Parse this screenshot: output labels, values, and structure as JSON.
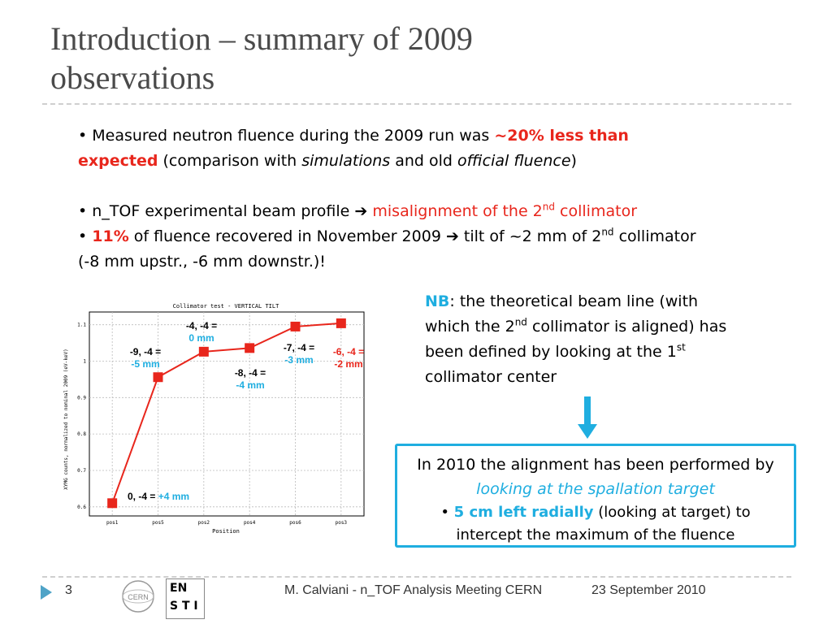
{
  "slide": {
    "title_line1": "Introduction – summary of 2009",
    "title_line2": "observations",
    "b1_pre": "Measured neutron fluence during the 2009 run was ",
    "b1_red1": "~20% less than",
    "b1_red2": "expected",
    "b1_mid": " (comparison with ",
    "b1_sim": "simulations",
    "b1_and": " and old ",
    "b1_off": "official fluence",
    "b1_end": ")",
    "b2_pre": "n_TOF experimental beam profile ",
    "b2_red_pre": "misalignment of the 2",
    "b2_red_sup": "nd",
    "b2_red_post": " collimator",
    "b3_pct": "11%",
    "b3_text": " of fluence recovered in November 2009 ",
    "b3_tail": " tilt of ~2 mm of 2",
    "b3_sup": "nd",
    "b3_end": " collimator",
    "b3_line2": "(-8 mm upstr., -6 mm downstr.)!",
    "nb_label": "NB",
    "nb_1": ": the theoretical beam line (with",
    "nb_2": "which the 2",
    "nb_2sup": "nd",
    "nb_2b": " collimator is aligned) has",
    "nb_3": "been defined by looking at the 1",
    "nb_3sup": "st",
    "nb_4": "collimator center",
    "box_l1": "In 2010 the alignment has been performed by",
    "box_l2": "looking at the spallation target",
    "box_l3a": "5 cm left radially",
    "box_l3b": " (looking at target) to",
    "box_l4": "intercept the maximum of the fluence"
  },
  "footer": {
    "page": "3",
    "text": "M. Calviani - n_TOF Analysis Meeting CERN",
    "date": "23 September 2010",
    "logo1": "CERN",
    "logo2_a": "EN",
    "logo2_b": "S T I"
  },
  "chart_data": {
    "type": "line",
    "title": "Collimator test - VERTICAL TILT",
    "xlabel": "Position",
    "ylabel": "XYMG counts, normalized to nominal 2009 (eV-keV)",
    "categories": [
      "pos1",
      "pos5",
      "pos2",
      "pos4",
      "pos6",
      "pos3"
    ],
    "values": [
      0.61,
      0.956,
      1.026,
      1.036,
      1.095,
      1.104
    ],
    "ylim": [
      0.575,
      1.135
    ],
    "yticks": [
      "0.6",
      "0.7",
      "0.8",
      "0.9",
      "1",
      "1.1"
    ],
    "color": "#e8261c",
    "grid": true,
    "annotations": [
      {
        "label": "0, -4 =",
        "value": "+4 mm"
      },
      {
        "label": "-9, -4 =",
        "value": "-5 mm"
      },
      {
        "label": "-4, -4 =",
        "value": "0 mm"
      },
      {
        "label": "-8, -4 =",
        "value": "-4 mm"
      },
      {
        "label": "-7, -4 =",
        "value": "-3 mm"
      },
      {
        "label": "-6, -4 =",
        "value": "-2 mm"
      }
    ]
  }
}
